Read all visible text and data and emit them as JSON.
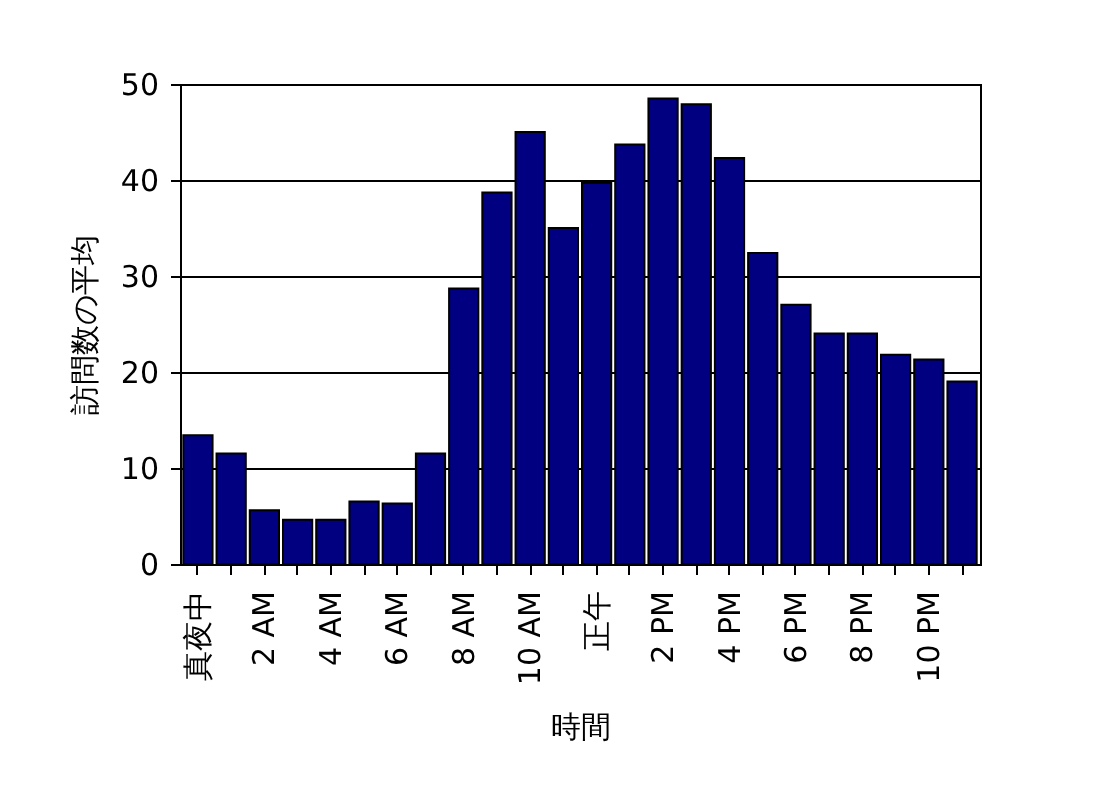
{
  "chart_data": {
    "type": "bar",
    "xlabel": "時間",
    "ylabel": "訪問数の平均",
    "categories": [
      "真夜中",
      null,
      "2 AM",
      null,
      "4 AM",
      null,
      "6 AM",
      null,
      "8 AM",
      null,
      "10 AM",
      null,
      "正午",
      null,
      "2 PM",
      null,
      "4 PM",
      null,
      "6 PM",
      null,
      "8 PM",
      null,
      "10 PM",
      null
    ],
    "values": [
      13.4,
      11.5,
      5.6,
      4.6,
      4.6,
      6.5,
      6.3,
      11.5,
      28.7,
      38.7,
      45,
      35,
      39.7,
      43.7,
      48.5,
      47.9,
      42.3,
      32.4,
      27,
      24,
      24,
      21.8,
      21.3,
      19
    ],
    "color": "#000080",
    "ylim": [
      0,
      50
    ],
    "yticks": [
      0,
      10,
      20,
      30,
      40,
      50
    ],
    "grid": "y"
  }
}
